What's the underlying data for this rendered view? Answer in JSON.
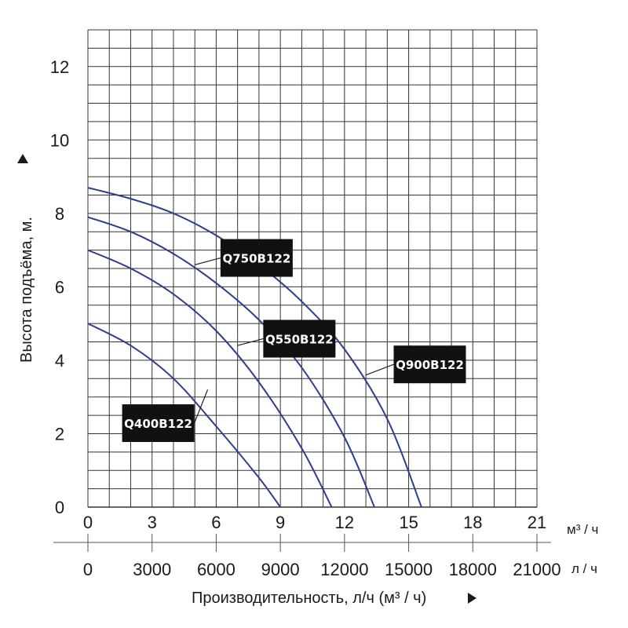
{
  "chart_data": {
    "type": "line",
    "xlabel": "Производительность, л/ч (м³ / ч)",
    "ylabel": "Высота подъёма, м.",
    "x_unit_top": "м³ / ч",
    "x_unit_bottom": "л / ч",
    "xlim": [
      0,
      21
    ],
    "ylim": [
      0,
      13
    ],
    "x_ticks_m3h": [
      "0",
      "3",
      "6",
      "9",
      "12",
      "15",
      "18",
      "21"
    ],
    "x_ticks_lh": [
      "0",
      "3000",
      "6000",
      "9000",
      "12000",
      "15000",
      "18000",
      "21000"
    ],
    "y_ticks": [
      "0",
      "2",
      "4",
      "6",
      "8",
      "10",
      "12"
    ],
    "grid": true,
    "curve_color": "#2e3d8f",
    "series": [
      {
        "name": "Q400B122",
        "x": [
          0,
          2,
          4,
          6,
          8,
          9
        ],
        "y": [
          5.0,
          4.4,
          3.5,
          2.2,
          0.8,
          0
        ]
      },
      {
        "name": "Q550B122",
        "x": [
          0,
          2,
          4,
          6,
          8,
          10,
          11.4
        ],
        "y": [
          7.0,
          6.5,
          5.8,
          4.8,
          3.4,
          1.6,
          0
        ]
      },
      {
        "name": "Q750B122",
        "x": [
          0,
          2,
          4,
          6,
          8,
          10,
          12,
          13.4
        ],
        "y": [
          7.9,
          7.5,
          6.9,
          6.1,
          5.1,
          3.8,
          1.9,
          0
        ]
      },
      {
        "name": "Q900B122",
        "x": [
          0,
          2,
          4,
          6,
          8,
          10,
          12,
          14,
          15.6
        ],
        "y": [
          8.7,
          8.4,
          8.0,
          7.4,
          6.6,
          5.6,
          4.3,
          2.4,
          0
        ]
      }
    ]
  }
}
